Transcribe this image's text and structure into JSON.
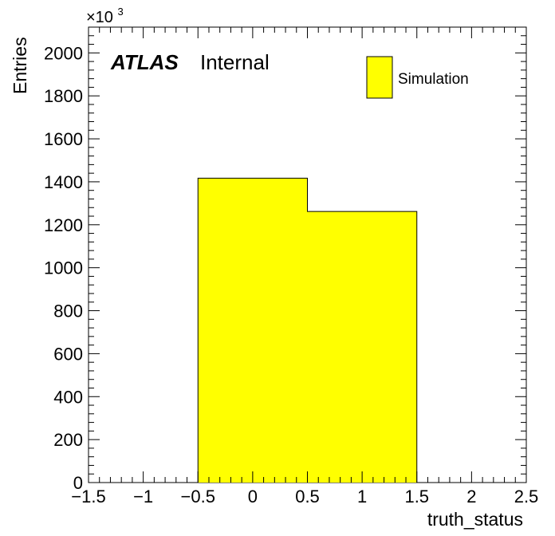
{
  "chart_data": {
    "type": "bar",
    "style": "histogram",
    "xlabel": "truth_status",
    "ylabel": "Entries",
    "y_multiplier_label": "×10",
    "y_multiplier_exponent": "3",
    "xlim": [
      -1.5,
      2.5
    ],
    "ylim": [
      0,
      2120
    ],
    "x_ticks": [
      -1.5,
      -1,
      -0.5,
      0,
      0.5,
      1,
      1.5,
      2,
      2.5
    ],
    "x_tick_labels": [
      "−1.5",
      "−1",
      "−0.5",
      "0",
      "0.5",
      "1",
      "1.5",
      "2",
      "2.5"
    ],
    "y_ticks": [
      0,
      200,
      400,
      600,
      800,
      1000,
      1200,
      1400,
      1600,
      1800,
      2000
    ],
    "y_tick_labels": [
      "0",
      "200",
      "400",
      "600",
      "800",
      "1000",
      "1200",
      "1400",
      "1600",
      "1800",
      "2000"
    ],
    "bins": [
      {
        "low": -0.5,
        "high": 0.5,
        "value": 1417
      },
      {
        "low": 0.5,
        "high": 1.5,
        "value": 1262
      }
    ],
    "series": [
      {
        "name": "Simulation",
        "color": "#ffff00"
      }
    ],
    "legend_position": "top-right",
    "grid": false
  },
  "annotations": {
    "atlas": "ATLAS",
    "internal": "Internal"
  }
}
